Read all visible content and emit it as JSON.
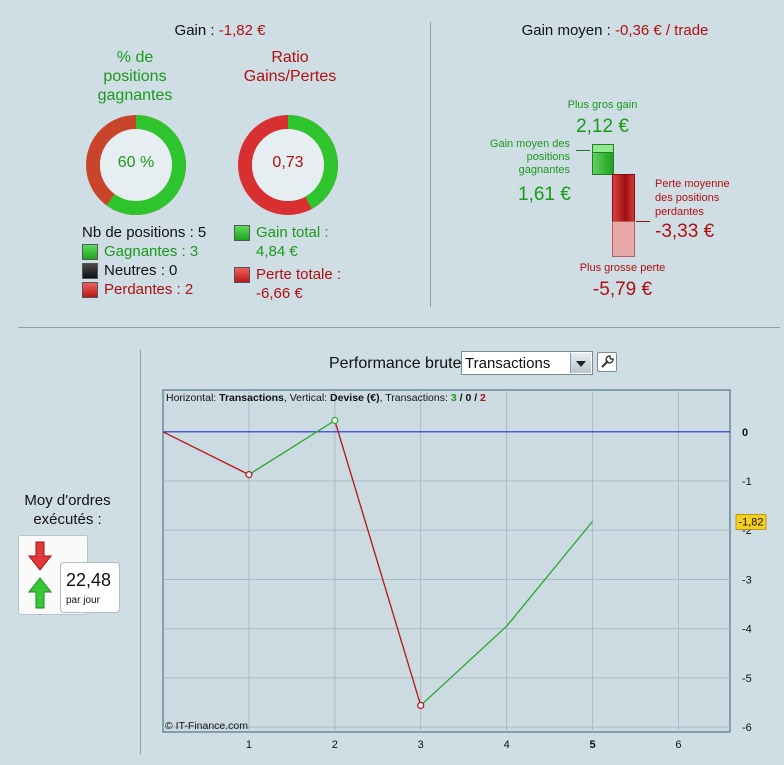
{
  "summary": {
    "gain_label": "Gain :",
    "gain_value": "-1,82 €",
    "avg_label": "Gain moyen :",
    "avg_value": "-0,36 € / trade"
  },
  "win_pct": {
    "title_lines": [
      "% de",
      "positions",
      "gagnantes"
    ],
    "value_text": "60 %",
    "fraction": 0.6
  },
  "ratio": {
    "title_lines": [
      "Ratio",
      "Gains/Pertes"
    ],
    "value_text": "0,73",
    "fraction": 0.42
  },
  "positions": {
    "count_label": "Nb de positions : 5",
    "winners": "Gagnantes : 3",
    "neutral": "Neutres : 0",
    "losers": "Perdantes : 2"
  },
  "totals": {
    "gain_label": "Gain total :",
    "gain_value": "4,84 €",
    "loss_label": "Perte totale :",
    "loss_value": "-6,66 €"
  },
  "extremes": {
    "max_gain_label": "Plus gros gain",
    "max_gain_value": "2,12 €",
    "avg_win_label_lines": [
      "Gain moyen des",
      "positions",
      "gagnantes"
    ],
    "avg_win_value": "1,61 €",
    "avg_loss_label_lines": [
      "Perte moyenne",
      "des positions",
      "perdantes"
    ],
    "avg_loss_value": "-3,33 €",
    "max_loss_label": "Plus grosse perte",
    "max_loss_value": "-5,79 €"
  },
  "orders": {
    "label_lines": [
      "Moy d'ordres",
      "exécutés :"
    ],
    "value": "22,48",
    "unit": "par jour"
  },
  "chart_header": {
    "title": "Performance brute",
    "selected": "Transactions",
    "info_h_label": "Horizontal:",
    "info_h_value": "Transactions",
    "info_v_label": ", Vertical:",
    "info_v_value": "Devise (€)",
    "info_t_label": ", Transactions:",
    "info_t_win": "3",
    "info_t_sep1": " / ",
    "info_t_neutral": "0",
    "info_t_sep2": " / ",
    "info_t_loss": "2",
    "copyright": "© IT-Finance.com",
    "current_value_badge": "-1,82"
  },
  "colors": {
    "gain": "#2aa82a",
    "loss": "#b01818",
    "zero_line": "#2233cc",
    "badge": "#f5d020"
  },
  "chart_data": {
    "type": "line",
    "x": [
      0,
      1,
      2,
      3,
      4,
      5
    ],
    "y": [
      0,
      -0.87,
      0.23,
      -5.56,
      -3.95,
      -1.82
    ],
    "segment_colors": [
      "loss",
      "gain",
      "loss",
      "gain",
      "gain"
    ],
    "markers": [
      1,
      2,
      3
    ],
    "xlim": [
      0,
      6.6
    ],
    "ylim": [
      -6.1,
      0.85
    ],
    "xticks": [
      "1",
      "2",
      "3",
      "4",
      "5",
      "6"
    ],
    "yticks": [
      "0",
      "-1",
      "-2",
      "-3",
      "-4",
      "-5",
      "-6"
    ],
    "grid": true
  }
}
